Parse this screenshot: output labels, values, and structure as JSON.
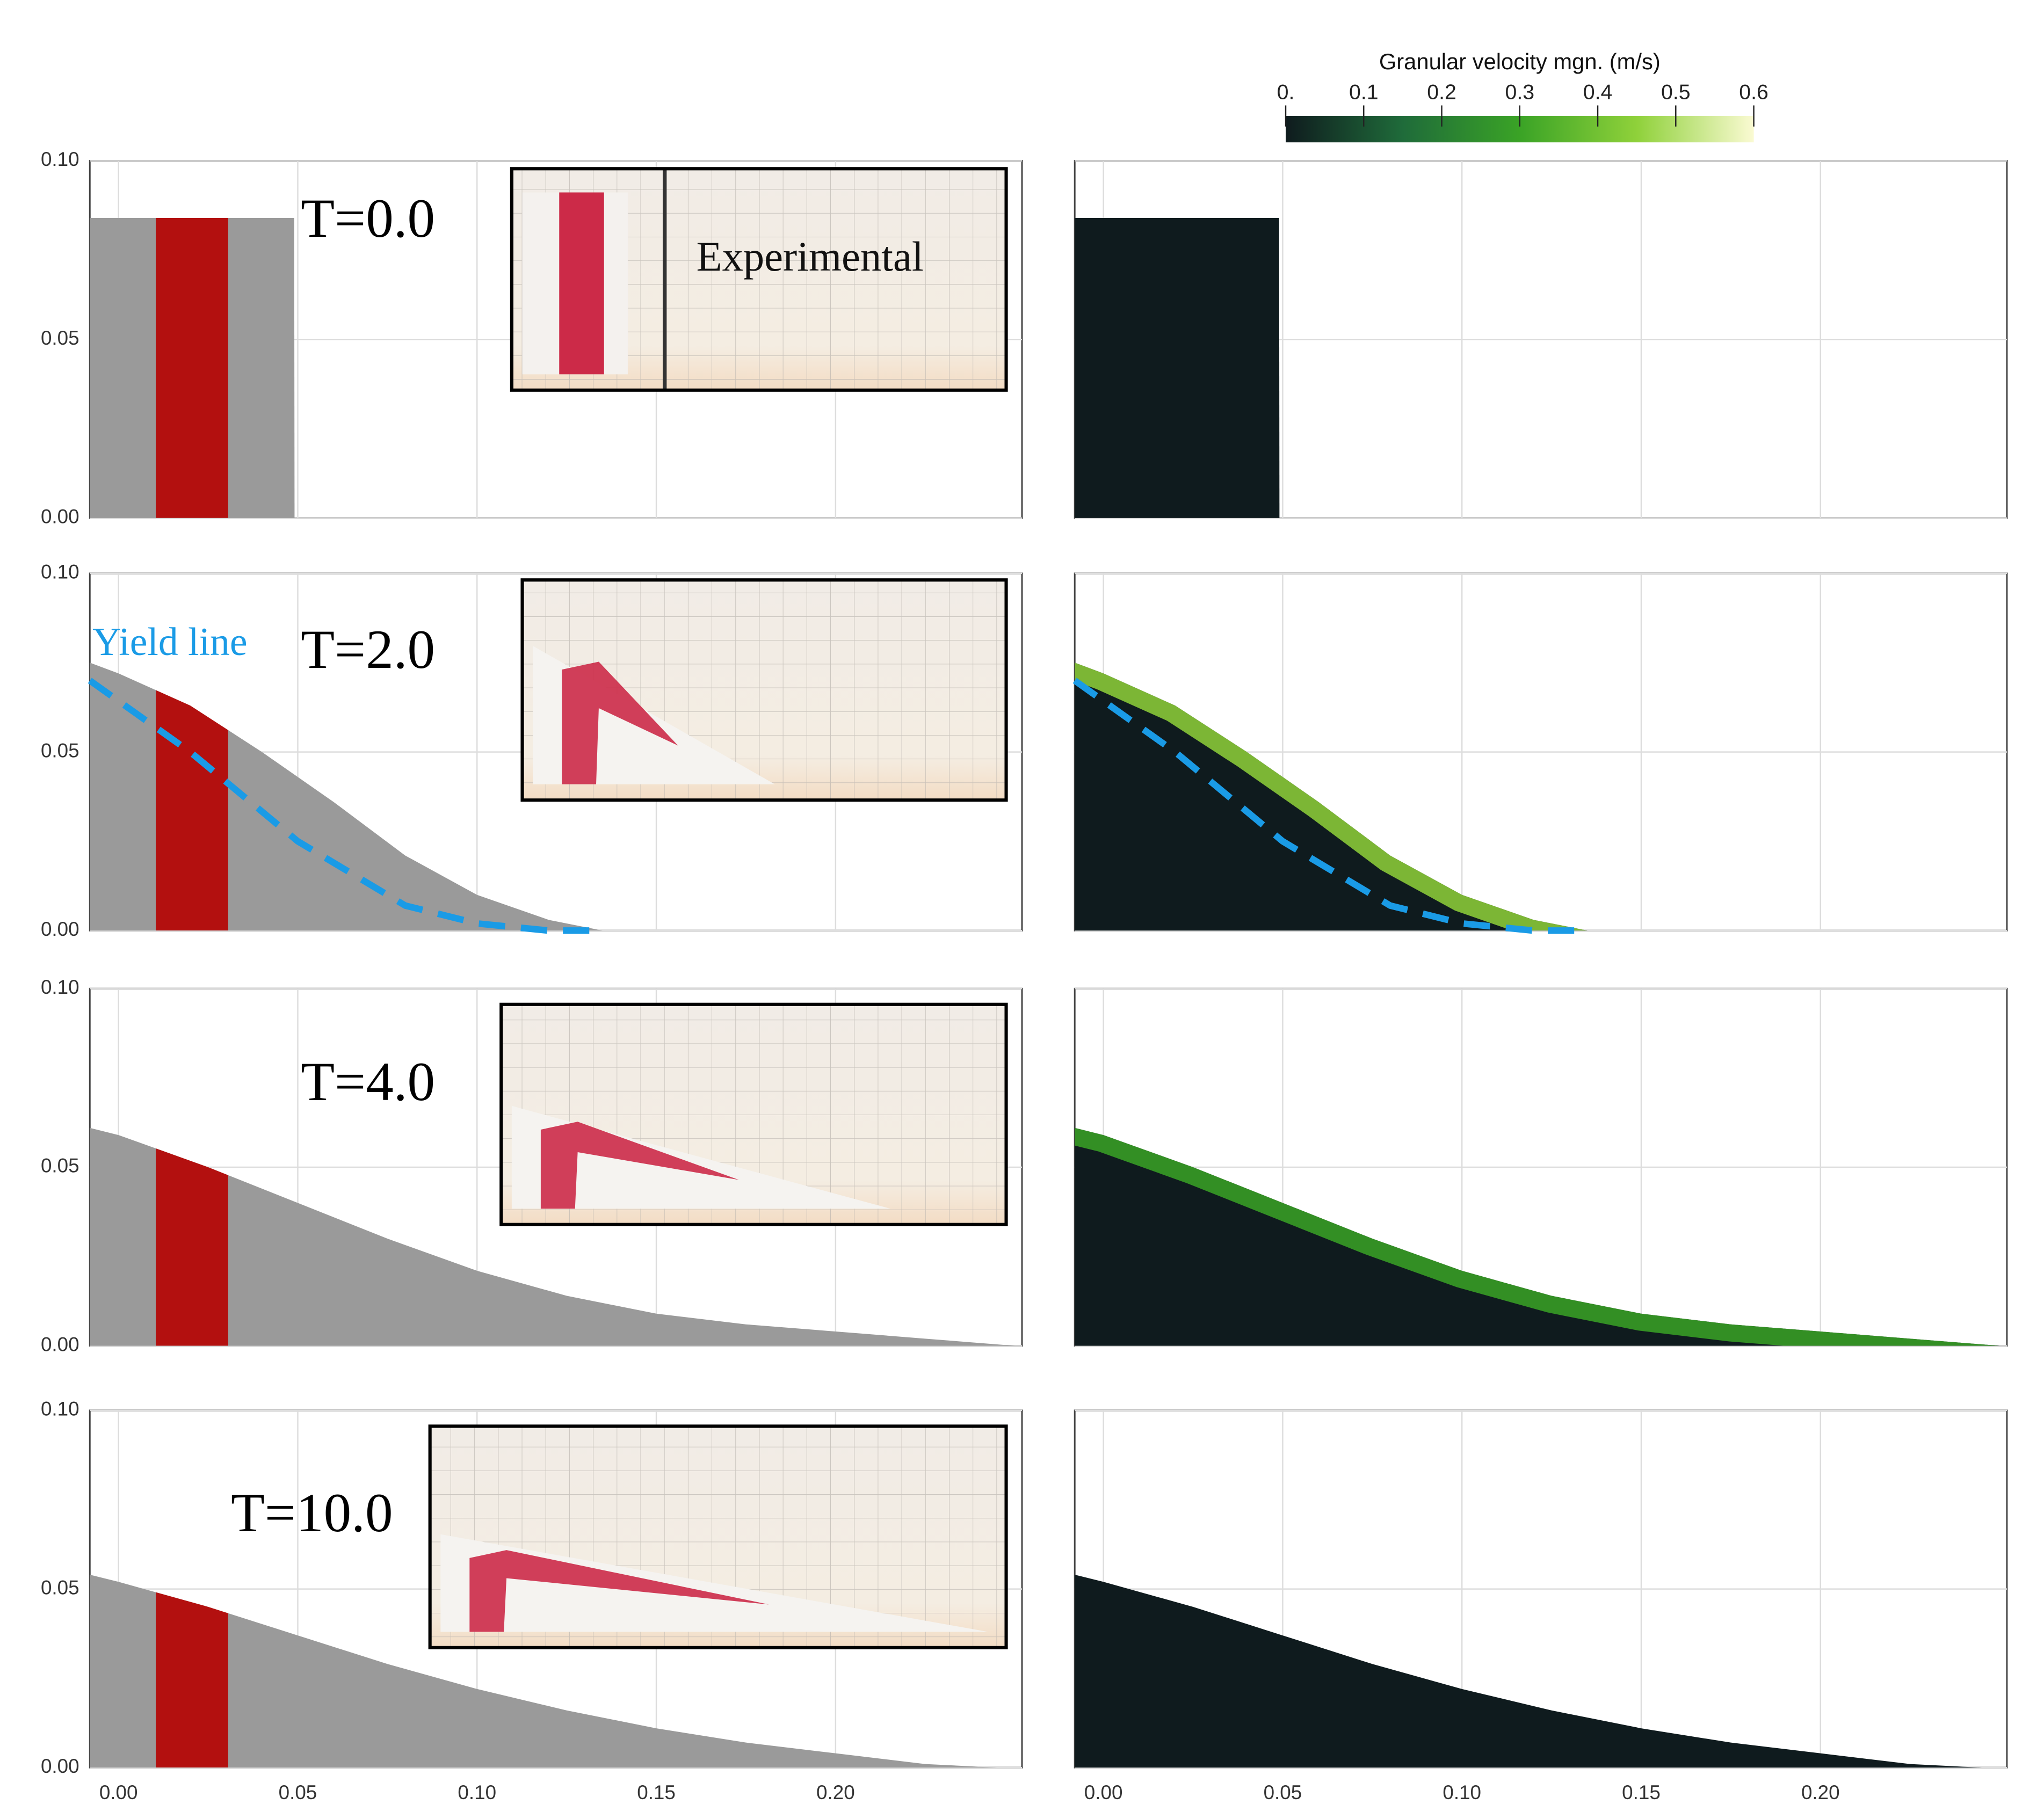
{
  "chart_data": {
    "type": "profile",
    "colorbar": {
      "title": "Granular velocity mgn. (m/s)",
      "lim": [
        0,
        0.6
      ],
      "ticks": [
        {
          "value": 0,
          "label": "0."
        },
        0.1,
        0.2,
        0.3,
        0.4,
        0.5,
        0.6
      ],
      "colors": [
        "#0f1b1e",
        "#1f6b3a",
        "#3aa326",
        "#8fd13a",
        "#fafad2"
      ]
    },
    "xlim": [
      -0.008,
      0.252
    ],
    "ylim": [
      0,
      0.1
    ],
    "xticks": [
      {
        "value": 0,
        "label": "0.00"
      },
      {
        "value": 0.05,
        "label": "0.05"
      },
      {
        "value": 0.1,
        "label": "0.10"
      },
      {
        "value": 0.15,
        "label": "0.15"
      },
      {
        "value": 0.2,
        "label": "0.20"
      }
    ],
    "yticks": [
      {
        "value": 0,
        "label": "0.00"
      },
      {
        "value": 0.05,
        "label": "0.05"
      },
      {
        "value": 0.1,
        "label": "0.10"
      }
    ],
    "grid": true,
    "material_color": "#9a9a9a",
    "dyed_color": "#b3100f",
    "yield_color": "#1a9be6",
    "dyed_column_x": [
      0.0104,
      0.0306
    ],
    "panels": [
      {
        "time": "T=0.0",
        "inset_label": "Experimental",
        "surface_speed": 0,
        "surface": {
          "x": [
            -0.008,
            0.049,
            0.0491
          ],
          "height": [
            0.084,
            0.084,
            0
          ]
        }
      },
      {
        "time": "T=2.0",
        "surface_speed": 0.45,
        "surface": {
          "x": [
            -0.008,
            0,
            0.02,
            0.04,
            0.06,
            0.08,
            0.1,
            0.12,
            0.135
          ],
          "height": [
            0.075,
            0.072,
            0.063,
            0.05,
            0.036,
            0.021,
            0.01,
            0.003,
            0
          ]
        },
        "yield_line": {
          "label": "Yield line",
          "x": [
            -0.008,
            0.02,
            0.05,
            0.08,
            0.1,
            0.12,
            0.135
          ],
          "height": [
            0.07,
            0.05,
            0.025,
            0.007,
            0.002,
            0,
            0
          ]
        }
      },
      {
        "time": "T=4.0",
        "surface_speed": 0.3,
        "surface": {
          "x": [
            -0.008,
            0,
            0.025,
            0.05,
            0.075,
            0.1,
            0.125,
            0.15,
            0.175,
            0.2,
            0.225,
            0.25
          ],
          "height": [
            0.061,
            0.059,
            0.05,
            0.04,
            0.03,
            0.021,
            0.014,
            0.009,
            0.006,
            0.004,
            0.002,
            0
          ]
        }
      },
      {
        "time": "T=10.0",
        "surface_speed": 0,
        "surface": {
          "x": [
            -0.008,
            0,
            0.025,
            0.05,
            0.075,
            0.1,
            0.125,
            0.15,
            0.175,
            0.2,
            0.225,
            0.245
          ],
          "height": [
            0.054,
            0.052,
            0.045,
            0.037,
            0.029,
            0.022,
            0.016,
            0.011,
            0.007,
            0.004,
            0.001,
            0
          ]
        }
      }
    ]
  }
}
